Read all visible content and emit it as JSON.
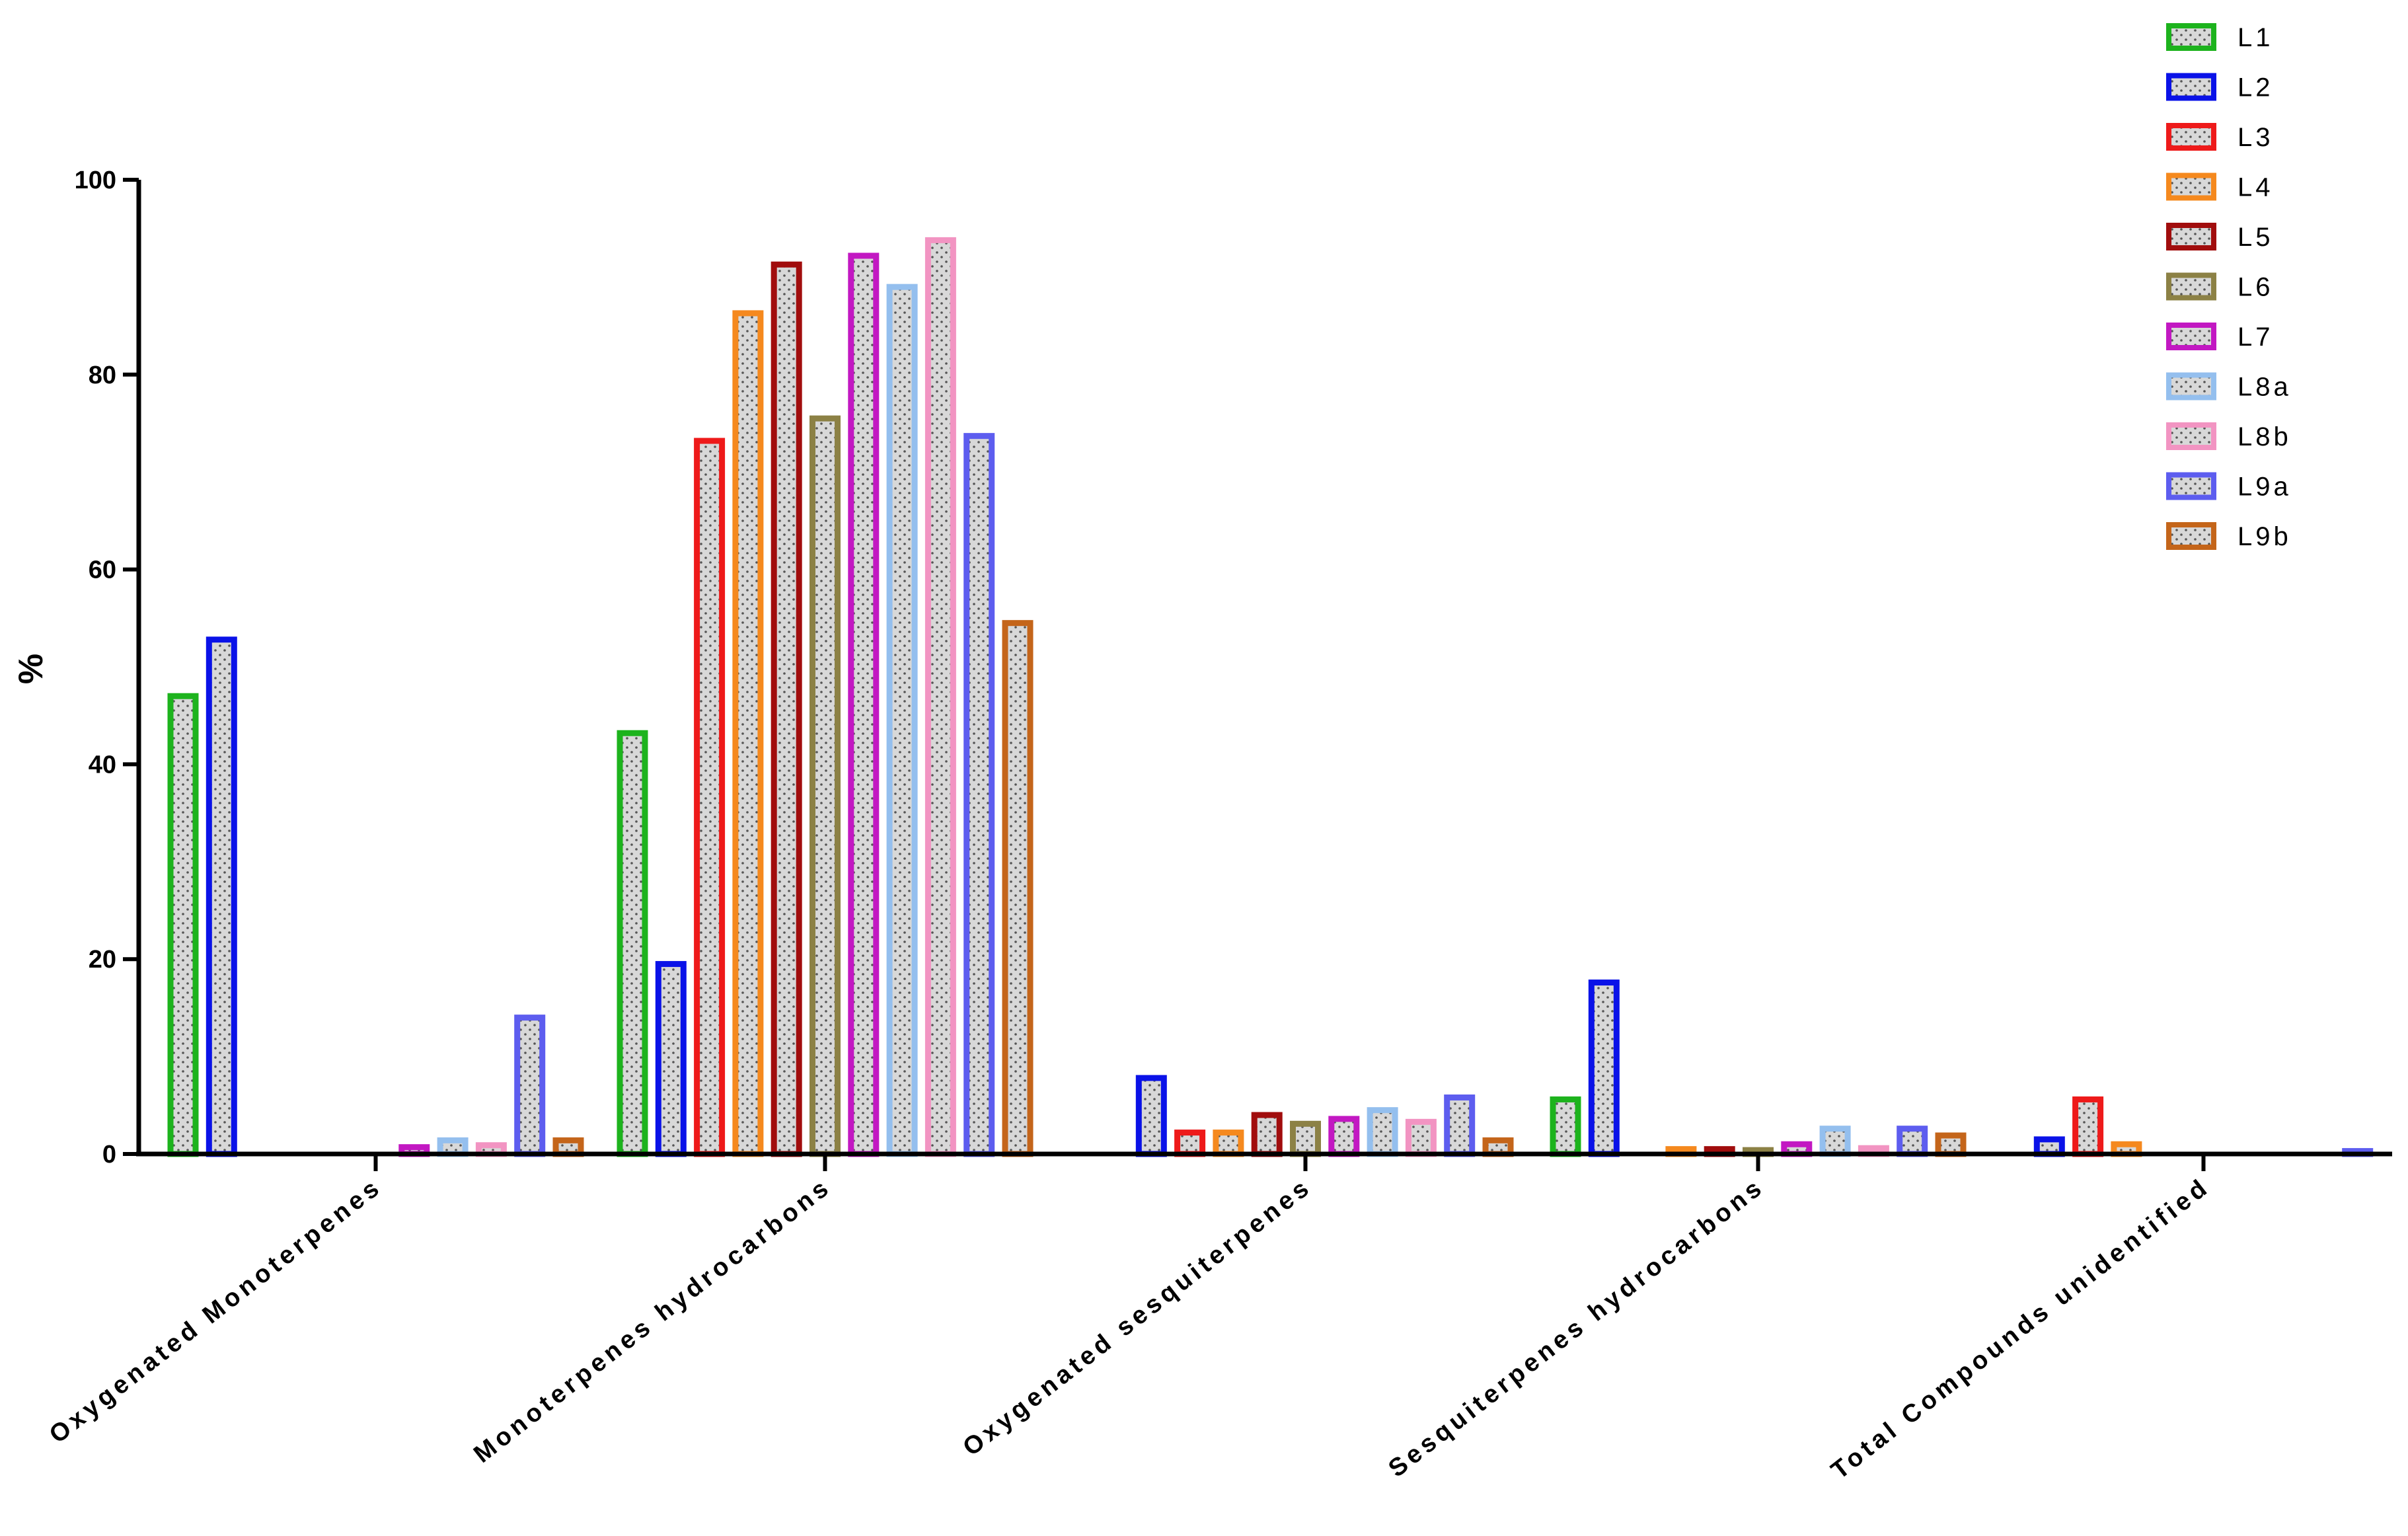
{
  "chart_data": {
    "type": "bar",
    "title": "",
    "xlabel": "",
    "ylabel": "%",
    "ylim": [
      0,
      100
    ],
    "yticks": [
      0,
      20,
      40,
      60,
      80,
      100
    ],
    "grid": false,
    "legend_position": "top-right",
    "categories": [
      "Oxygenated Monoterpenes",
      "Monoterpenes hydrocarbons",
      "Oxygenated sesquiterpenes",
      "Sesquiterpenes hydrocarbons",
      "Total Compounds unidentified"
    ],
    "series": [
      {
        "name": "L1",
        "color": "#1db31d",
        "values": [
          47.0,
          43.2,
          0.0,
          5.6,
          0.0
        ]
      },
      {
        "name": "L2",
        "color": "#0a12e8",
        "values": [
          52.8,
          19.5,
          7.8,
          17.6,
          1.5
        ]
      },
      {
        "name": "L3",
        "color": "#ee1a1a",
        "values": [
          0.0,
          73.2,
          2.2,
          0.0,
          5.6
        ]
      },
      {
        "name": "L4",
        "color": "#f5891e",
        "values": [
          0.0,
          86.3,
          2.2,
          0.5,
          1.0
        ]
      },
      {
        "name": "L5",
        "color": "#a10d0d",
        "values": [
          0.0,
          91.3,
          4.0,
          0.5,
          0.0
        ]
      },
      {
        "name": "L6",
        "color": "#8c8145",
        "values": [
          0.0,
          75.5,
          3.1,
          0.4,
          0.0
        ]
      },
      {
        "name": "L7",
        "color": "#c218c2",
        "values": [
          0.7,
          92.2,
          3.6,
          1.0,
          0.0
        ]
      },
      {
        "name": "L8a",
        "color": "#94bfee",
        "values": [
          1.4,
          89.0,
          4.5,
          2.6,
          0.0
        ]
      },
      {
        "name": "L8b",
        "color": "#f294c2",
        "values": [
          0.9,
          93.8,
          3.3,
          0.6,
          0.0
        ]
      },
      {
        "name": "L9a",
        "color": "#5d5def",
        "values": [
          14.0,
          73.7,
          5.8,
          2.6,
          0.3
        ]
      },
      {
        "name": "L9b",
        "color": "#c4651a",
        "values": [
          1.4,
          54.5,
          1.4,
          1.9,
          0.0
        ]
      }
    ]
  }
}
